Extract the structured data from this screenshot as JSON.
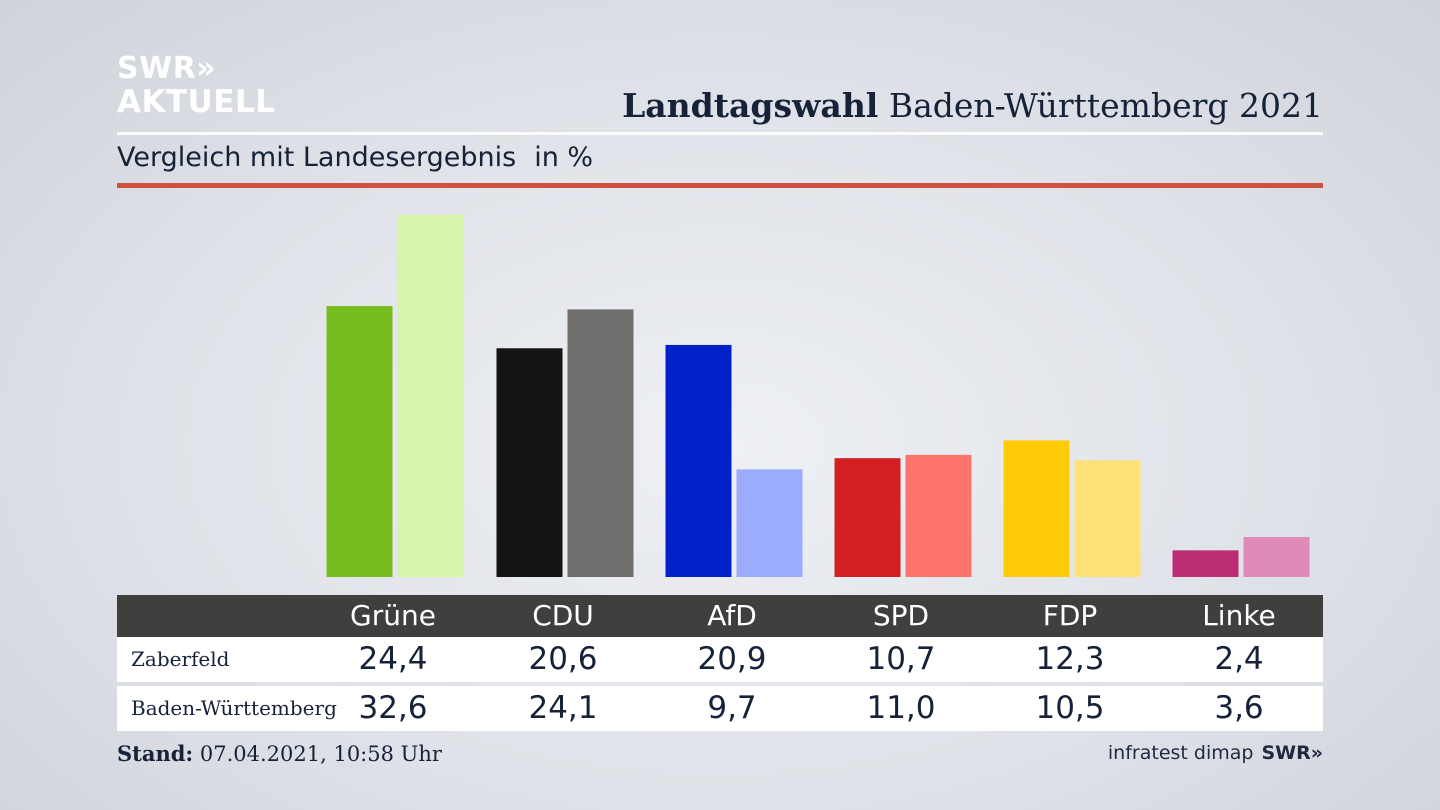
{
  "logo": {
    "line1": "SWR»",
    "line2": "AKTUELL"
  },
  "header": {
    "title_bold": "Landtagswahl",
    "title_rest": "Baden-Württemberg 2021",
    "subtitle": "Vergleich mit Landesergebnis",
    "unit": "in %"
  },
  "chart_data": {
    "type": "bar",
    "categories": [
      "Grüne",
      "CDU",
      "AfD",
      "SPD",
      "FDP",
      "Linke"
    ],
    "series": [
      {
        "name": "Zaberfeld",
        "values": [
          24.4,
          20.6,
          20.9,
          10.7,
          12.3,
          2.4
        ],
        "colors": [
          "#78bd1e",
          "#141414",
          "#0021c8",
          "#d31f21",
          "#ffcb09",
          "#bb2e76"
        ]
      },
      {
        "name": "Baden-Württemberg",
        "values": [
          32.6,
          24.1,
          9.7,
          11.0,
          10.5,
          3.6
        ],
        "colors": [
          "#d6f5aa",
          "#6f6e6c",
          "#9bacff",
          "#fe746c",
          "#fee275",
          "#de8bb9"
        ]
      }
    ],
    "display_values": [
      [
        "24,4",
        "20,6",
        "20,9",
        "10,7",
        "12,3",
        "2,4"
      ],
      [
        "32,6",
        "24,1",
        "9,7",
        "11,0",
        "10,5",
        "3,6"
      ]
    ],
    "ylim": [
      0,
      32.6
    ]
  },
  "footer": {
    "stand_label": "Stand:",
    "stand_value": "07.04.2021, 10:58 Uhr",
    "source": "infratest dimap",
    "brand": "SWR»"
  }
}
